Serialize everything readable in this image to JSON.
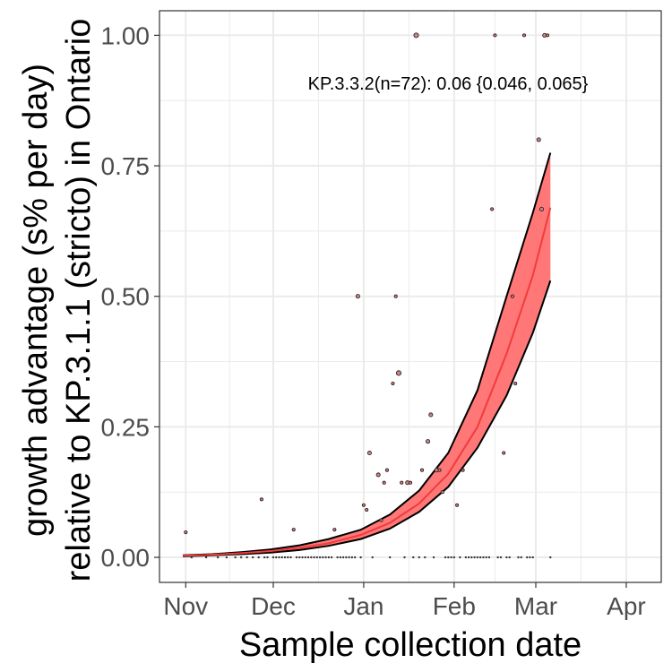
{
  "chart_data": {
    "type": "scatter",
    "xlabel": "Sample collection date",
    "ylabel_line1": "growth advantage (s% per day)",
    "ylabel_line2": "relative to KP.3.1.1 (stricto) in Ontario",
    "annotation": "KP.3.3.2(n=72): 0.06 {0.046, 0.065}",
    "x_ticks": [
      {
        "label": "Nov",
        "date": "2024-11-01"
      },
      {
        "label": "Dec",
        "date": "2024-12-01"
      },
      {
        "label": "Jan",
        "date": "2025-01-01"
      },
      {
        "label": "Feb",
        "date": "2025-02-01"
      },
      {
        "label": "Mar",
        "date": "2025-03-01"
      },
      {
        "label": "Apr",
        "date": "2025-04-01"
      }
    ],
    "y_ticks": [
      0.0,
      0.25,
      0.5,
      0.75,
      1.0
    ],
    "y_tick_labels": [
      "0.00",
      "0.25",
      "0.50",
      "0.75",
      "1.00"
    ],
    "xlim": [
      "2024-10-23",
      "2025-04-13"
    ],
    "ylim": [
      -0.048,
      1.047
    ],
    "grid": true,
    "colors": {
      "ribbon": "#ff7070",
      "fit": "#f03c3c",
      "bounds": "#000000",
      "point_fill": "#c48a8a",
      "point_stroke": "#3a1f1f",
      "grid": "#ebebeb",
      "panel_border": "#333333"
    },
    "fit": {
      "date": [
        "2024-10-31",
        "2024-11-10",
        "2024-11-20",
        "2024-11-30",
        "2024-12-10",
        "2024-12-20",
        "2024-12-31",
        "2025-01-10",
        "2025-01-20",
        "2025-01-30",
        "2025-02-09",
        "2025-02-19",
        "2025-02-28",
        "2025-03-06"
      ],
      "center": [
        0.003,
        0.005,
        0.008,
        0.012,
        0.018,
        0.027,
        0.043,
        0.066,
        0.103,
        0.16,
        0.25,
        0.39,
        0.54,
        0.67
      ],
      "lower": [
        0.002,
        0.004,
        0.006,
        0.009,
        0.014,
        0.022,
        0.035,
        0.055,
        0.087,
        0.135,
        0.21,
        0.31,
        0.43,
        0.53
      ],
      "upper": [
        0.004,
        0.006,
        0.01,
        0.015,
        0.023,
        0.035,
        0.053,
        0.082,
        0.128,
        0.2,
        0.32,
        0.5,
        0.66,
        0.775
      ]
    },
    "points": [
      {
        "date": "2024-11-01",
        "y": 0.048,
        "n": 1
      },
      {
        "date": "2024-11-27",
        "y": 0.111,
        "n": 1
      },
      {
        "date": "2024-12-08",
        "y": 0.053,
        "n": 1
      },
      {
        "date": "2024-12-22",
        "y": 0.053,
        "n": 1
      },
      {
        "date": "2024-12-30",
        "y": 0.5,
        "n": 2
      },
      {
        "date": "2025-01-01",
        "y": 0.1,
        "n": 1
      },
      {
        "date": "2025-01-02",
        "y": 0.091,
        "n": 1
      },
      {
        "date": "2025-01-03",
        "y": 0.2,
        "n": 2
      },
      {
        "date": "2025-01-06",
        "y": 0.158,
        "n": 2
      },
      {
        "date": "2025-01-07",
        "y": 0.071,
        "n": 1
      },
      {
        "date": "2025-01-08",
        "y": 0.143,
        "n": 1
      },
      {
        "date": "2025-01-09",
        "y": 0.167,
        "n": 1
      },
      {
        "date": "2025-01-11",
        "y": 0.333,
        "n": 1
      },
      {
        "date": "2025-01-12",
        "y": 0.5,
        "n": 1
      },
      {
        "date": "2025-01-13",
        "y": 0.353,
        "n": 3
      },
      {
        "date": "2025-01-14",
        "y": 0.143,
        "n": 1
      },
      {
        "date": "2025-01-16",
        "y": 0.143,
        "n": 2
      },
      {
        "date": "2025-01-17",
        "y": 0.143,
        "n": 1
      },
      {
        "date": "2025-01-19",
        "y": 1.0,
        "n": 3
      },
      {
        "date": "2025-01-21",
        "y": 0.167,
        "n": 1
      },
      {
        "date": "2025-01-23",
        "y": 0.222,
        "n": 2
      },
      {
        "date": "2025-01-24",
        "y": 0.273,
        "n": 2
      },
      {
        "date": "2025-01-26",
        "y": 0.167,
        "n": 2
      },
      {
        "date": "2025-01-27",
        "y": 0.167,
        "n": 1
      },
      {
        "date": "2025-01-28",
        "y": 0.125,
        "n": 1
      },
      {
        "date": "2025-02-02",
        "y": 0.1,
        "n": 1
      },
      {
        "date": "2025-02-04",
        "y": 0.167,
        "n": 1
      },
      {
        "date": "2025-02-14",
        "y": 0.667,
        "n": 1
      },
      {
        "date": "2025-02-15",
        "y": 1.0,
        "n": 1
      },
      {
        "date": "2025-02-18",
        "y": 0.2,
        "n": 1
      },
      {
        "date": "2025-02-21",
        "y": 0.5,
        "n": 1
      },
      {
        "date": "2025-02-22",
        "y": 0.333,
        "n": 1
      },
      {
        "date": "2025-02-25",
        "y": 1.0,
        "n": 1
      },
      {
        "date": "2025-03-02",
        "y": 0.8,
        "n": 2
      },
      {
        "date": "2025-03-03",
        "y": 0.667,
        "n": 2
      },
      {
        "date": "2025-03-04",
        "y": 1.0,
        "n": 2
      },
      {
        "date": "2025-03-05",
        "y": 1.0,
        "n": 1
      }
    ],
    "zero_point_dates": [
      "2024-11-03",
      "2024-11-08",
      "2024-11-12",
      "2024-11-15",
      "2024-11-18",
      "2024-11-20",
      "2024-11-22",
      "2024-11-24",
      "2024-11-26",
      "2024-11-28",
      "2024-11-29",
      "2024-12-01",
      "2024-12-02",
      "2024-12-03",
      "2024-12-04",
      "2024-12-05",
      "2024-12-06",
      "2024-12-07",
      "2024-12-09",
      "2024-12-10",
      "2024-12-11",
      "2024-12-12",
      "2024-12-13",
      "2024-12-14",
      "2024-12-15",
      "2024-12-16",
      "2024-12-17",
      "2024-12-18",
      "2024-12-19",
      "2024-12-20",
      "2024-12-21",
      "2024-12-23",
      "2024-12-24",
      "2024-12-25",
      "2024-12-26",
      "2024-12-27",
      "2024-12-28",
      "2024-12-29",
      "2024-12-31",
      "2025-01-04",
      "2025-01-10",
      "2025-01-15",
      "2025-01-18",
      "2025-01-20",
      "2025-01-22",
      "2025-01-25",
      "2025-01-29",
      "2025-01-30",
      "2025-01-31",
      "2025-02-01",
      "2025-02-03",
      "2025-02-05",
      "2025-02-06",
      "2025-02-07",
      "2025-02-08",
      "2025-02-09",
      "2025-02-10",
      "2025-02-11",
      "2025-02-12",
      "2025-02-13",
      "2025-02-16",
      "2025-02-17",
      "2025-02-19",
      "2025-02-20",
      "2025-02-23",
      "2025-02-24",
      "2025-02-26",
      "2025-02-27",
      "2025-02-28",
      "2025-03-06"
    ]
  }
}
